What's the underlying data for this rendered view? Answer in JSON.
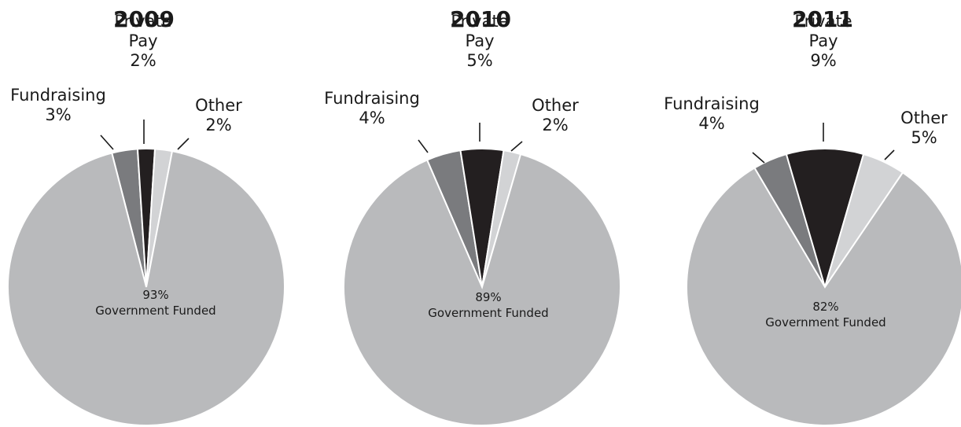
{
  "chart_data": [
    {
      "type": "pie",
      "title": "2009",
      "slices": [
        {
          "label": "Fundraising",
          "value": 3,
          "color": "#7a7b7e"
        },
        {
          "label": "Private Pay",
          "value": 2,
          "color": "#231f20"
        },
        {
          "label": "Other",
          "value": 2,
          "color": "#d2d3d5"
        },
        {
          "label": "Government Funded",
          "value": 93,
          "color": "#b9babc"
        }
      ],
      "labels": [
        {
          "lines": [
            "Fundraising",
            "3%"
          ]
        },
        {
          "lines": [
            "Private",
            "Pay",
            "2%"
          ]
        },
        {
          "lines": [
            "Other",
            "2%"
          ]
        },
        {
          "lines": [
            "93%",
            "Government Funded"
          ]
        }
      ]
    },
    {
      "type": "pie",
      "title": "2010",
      "slices": [
        {
          "label": "Fundraising",
          "value": 4,
          "color": "#7a7b7e"
        },
        {
          "label": "Private Pay",
          "value": 5,
          "color": "#231f20"
        },
        {
          "label": "Other",
          "value": 2,
          "color": "#d2d3d5"
        },
        {
          "label": "Government Funded",
          "value": 89,
          "color": "#b9babc"
        }
      ],
      "labels": [
        {
          "lines": [
            "Fundraising",
            "4%"
          ]
        },
        {
          "lines": [
            "Private",
            "Pay",
            "5%"
          ]
        },
        {
          "lines": [
            "Other",
            "2%"
          ]
        },
        {
          "lines": [
            "89%",
            "Government Funded"
          ]
        }
      ]
    },
    {
      "type": "pie",
      "title": "2011",
      "slices": [
        {
          "label": "Fundraising",
          "value": 4,
          "color": "#7a7b7e"
        },
        {
          "label": "Private Pay",
          "value": 9,
          "color": "#231f20"
        },
        {
          "label": "Other",
          "value": 5,
          "color": "#d2d3d5"
        },
        {
          "label": "Government Funded",
          "value": 82,
          "color": "#b9babc"
        }
      ],
      "labels": [
        {
          "lines": [
            "Fundraising",
            "4%"
          ]
        },
        {
          "lines": [
            "Private",
            "Pay",
            "9%"
          ]
        },
        {
          "lines": [
            "Other",
            "5%"
          ]
        },
        {
          "lines": [
            "82%",
            "Government Funded"
          ]
        }
      ]
    }
  ]
}
